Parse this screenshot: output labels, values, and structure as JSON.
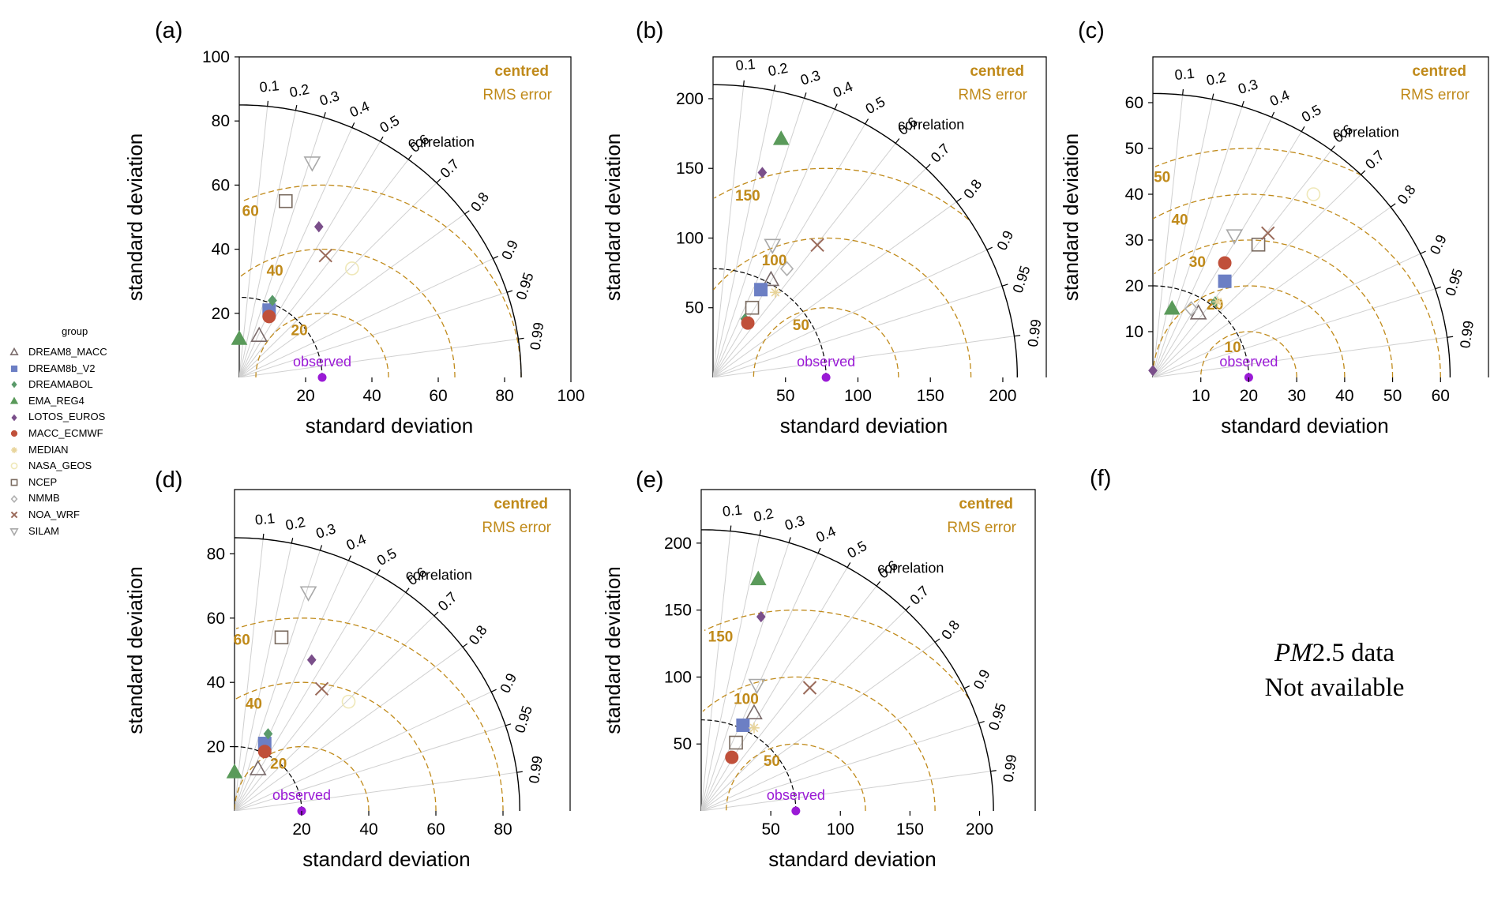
{
  "legend": {
    "title": "group",
    "items": [
      {
        "name": "DREAM8_MACC",
        "marker": "triangle-open",
        "color": "#7a6b6b"
      },
      {
        "name": "DREAM8b_V2",
        "marker": "square",
        "color": "#6c7fc4"
      },
      {
        "name": "DREAMABOL",
        "marker": "diamond",
        "color": "#5a9a6a"
      },
      {
        "name": "EMA_REG4",
        "marker": "triangle",
        "color": "#5a9a5a"
      },
      {
        "name": "LOTOS_EUROS",
        "marker": "diamond",
        "color": "#7a4f8a"
      },
      {
        "name": "MACC_ECMWF",
        "marker": "circle",
        "color": "#c0503a"
      },
      {
        "name": "MEDIAN",
        "marker": "asterisk",
        "color": "#e8d49a"
      },
      {
        "name": "NASA_GEOS",
        "marker": "circle-open",
        "color": "#efe8b8"
      },
      {
        "name": "NCEP",
        "marker": "square-open",
        "color": "#7a6b60"
      },
      {
        "name": "NMMB",
        "marker": "diamond-open",
        "color": "#b0b0b0"
      },
      {
        "name": "NOA_WRF",
        "marker": "x",
        "color": "#9a6a5a"
      },
      {
        "name": "SILAM",
        "marker": "triangle-down-open",
        "color": "#a8a8a8"
      }
    ]
  },
  "common": {
    "xlabel": "standard deviation",
    "ylabel": "standard deviation",
    "correlation_title": "correlation",
    "correlation_ticks": [
      "0.1",
      "0.2",
      "0.3",
      "0.4",
      "0.5",
      "0.6",
      "0.7",
      "0.8",
      "0.9",
      "0.95",
      "0.99"
    ],
    "rms_title_line1": "centred",
    "rms_title_line2": "RMS error",
    "observed_label": "observed",
    "colors": {
      "rms": "#c08a1a",
      "observed": "#9a1ad6",
      "refline": "#d0d0d0",
      "arc": "#000000"
    }
  },
  "chart_data": [
    {
      "panel": "(a)",
      "type": "scatter",
      "chart_kind": "taylor-diagram",
      "xlim": [
        0,
        100
      ],
      "ylim": [
        0,
        100
      ],
      "x_ticks": [
        "20",
        "40",
        "60",
        "80",
        "100"
      ],
      "y_ticks": [
        "20",
        "40",
        "60",
        "80",
        "100"
      ],
      "max_sd": 85,
      "observed_sd": 25,
      "rms_contours": [
        20,
        40,
        60
      ],
      "rms_labels": [
        "20",
        "40",
        "60"
      ],
      "points": [
        {
          "model": "DREAM8_MACC",
          "x": 6,
          "y": 13
        },
        {
          "model": "DREAM8b_V2",
          "x": 9,
          "y": 21
        },
        {
          "model": "DREAMABOL",
          "x": 10,
          "y": 24
        },
        {
          "model": "EMA_REG4",
          "x": 0,
          "y": 12
        },
        {
          "model": "LOTOS_EUROS",
          "x": 24,
          "y": 47
        },
        {
          "model": "MACC_ECMWF",
          "x": 9,
          "y": 19
        },
        {
          "model": "NASA_GEOS",
          "x": 34,
          "y": 34
        },
        {
          "model": "NCEP",
          "x": 14,
          "y": 55
        },
        {
          "model": "NOA_WRF",
          "x": 26,
          "y": 38
        },
        {
          "model": "SILAM",
          "x": 22,
          "y": 67
        }
      ]
    },
    {
      "panel": "(b)",
      "type": "scatter",
      "chart_kind": "taylor-diagram",
      "xlim": [
        0,
        230
      ],
      "ylim": [
        0,
        230
      ],
      "x_ticks": [
        "50",
        "100",
        "150",
        "200"
      ],
      "y_ticks": [
        "50",
        "100",
        "150",
        "200"
      ],
      "max_sd": 210,
      "observed_sd": 78,
      "rms_contours": [
        50,
        100,
        150
      ],
      "rms_labels": [
        "50",
        "100",
        "150"
      ],
      "points": [
        {
          "model": "DREAM8_MACC",
          "x": 40,
          "y": 70
        },
        {
          "model": "DREAM8b_V2",
          "x": 33,
          "y": 63
        },
        {
          "model": "DREAMABOL",
          "x": 22,
          "y": 42
        },
        {
          "model": "EMA_REG4",
          "x": 47,
          "y": 171
        },
        {
          "model": "LOTOS_EUROS",
          "x": 34,
          "y": 147
        },
        {
          "model": "MACC_ECMWF",
          "x": 24,
          "y": 39
        },
        {
          "model": "MEDIAN",
          "x": 43,
          "y": 61
        },
        {
          "model": "NCEP",
          "x": 27,
          "y": 50
        },
        {
          "model": "NMMB",
          "x": 51,
          "y": 78
        },
        {
          "model": "NOA_WRF",
          "x": 72,
          "y": 95
        },
        {
          "model": "SILAM",
          "x": 41,
          "y": 95
        }
      ]
    },
    {
      "panel": "(c)",
      "type": "scatter",
      "chart_kind": "taylor-diagram",
      "xlim": [
        0,
        70
      ],
      "ylim": [
        0,
        70
      ],
      "x_ticks": [
        "10",
        "20",
        "30",
        "40",
        "50",
        "60"
      ],
      "y_ticks": [
        "10",
        "20",
        "30",
        "40",
        "50",
        "60"
      ],
      "max_sd": 62,
      "observed_sd": 20,
      "rms_contours": [
        10,
        20,
        30,
        40,
        50
      ],
      "rms_labels": [
        "10",
        "20",
        "30",
        "40",
        "50"
      ],
      "points": [
        {
          "model": "DREAM8_MACC",
          "x": 9.5,
          "y": 14
        },
        {
          "model": "DREAM8b_V2",
          "x": 15,
          "y": 21
        },
        {
          "model": "DREAMABOL",
          "x": 13,
          "y": 16.5
        },
        {
          "model": "EMA_REG4",
          "x": 4,
          "y": 15
        },
        {
          "model": "LOTOS_EUROS",
          "x": 0,
          "y": 1.5
        },
        {
          "model": "MACC_ECMWF",
          "x": 15,
          "y": 25
        },
        {
          "model": "MEDIAN",
          "x": 13.5,
          "y": 16.5
        },
        {
          "model": "NASA_GEOS",
          "x": 33.5,
          "y": 40
        },
        {
          "model": "NCEP",
          "x": 22,
          "y": 29
        },
        {
          "model": "NMMB",
          "x": 8,
          "y": 15
        },
        {
          "model": "NOA_WRF",
          "x": 24,
          "y": 31.5
        },
        {
          "model": "SILAM",
          "x": 17,
          "y": 31
        }
      ]
    },
    {
      "panel": "(d)",
      "type": "scatter",
      "chart_kind": "taylor-diagram",
      "xlim": [
        0,
        100
      ],
      "ylim": [
        0,
        100
      ],
      "x_ticks": [
        "20",
        "40",
        "60",
        "80"
      ],
      "y_ticks": [
        "20",
        "40",
        "60",
        "80"
      ],
      "max_sd": 85,
      "observed_sd": 20,
      "rms_contours": [
        20,
        40,
        60
      ],
      "rms_labels": [
        "20",
        "40",
        "60"
      ],
      "points": [
        {
          "model": "DREAM8_MACC",
          "x": 7,
          "y": 13
        },
        {
          "model": "DREAM8b_V2",
          "x": 9,
          "y": 21
        },
        {
          "model": "DREAMABOL",
          "x": 10,
          "y": 24
        },
        {
          "model": "EMA_REG4",
          "x": 0,
          "y": 12
        },
        {
          "model": "LOTOS_EUROS",
          "x": 23,
          "y": 47
        },
        {
          "model": "MACC_ECMWF",
          "x": 9,
          "y": 18.5
        },
        {
          "model": "NASA_GEOS",
          "x": 34,
          "y": 34
        },
        {
          "model": "NCEP",
          "x": 14,
          "y": 54
        },
        {
          "model": "NOA_WRF",
          "x": 26,
          "y": 38
        },
        {
          "model": "SILAM",
          "x": 22,
          "y": 68
        }
      ]
    },
    {
      "panel": "(e)",
      "type": "scatter",
      "chart_kind": "taylor-diagram",
      "xlim": [
        0,
        240
      ],
      "ylim": [
        0,
        240
      ],
      "x_ticks": [
        "50",
        "100",
        "150",
        "200"
      ],
      "y_ticks": [
        "50",
        "100",
        "150",
        "200"
      ],
      "max_sd": 210,
      "observed_sd": 68,
      "rms_contours": [
        50,
        100,
        150
      ],
      "rms_labels": [
        "50",
        "100",
        "150"
      ],
      "points": [
        {
          "model": "DREAM8_MACC",
          "x": 38,
          "y": 73
        },
        {
          "model": "DREAM8b_V2",
          "x": 30,
          "y": 64
        },
        {
          "model": "DREAMABOL",
          "x": 21,
          "y": 41
        },
        {
          "model": "EMA_REG4",
          "x": 41,
          "y": 173
        },
        {
          "model": "LOTOS_EUROS",
          "x": 43,
          "y": 145
        },
        {
          "model": "MACC_ECMWF",
          "x": 22,
          "y": 40
        },
        {
          "model": "MEDIAN",
          "x": 38,
          "y": 62
        },
        {
          "model": "NCEP",
          "x": 25,
          "y": 51
        },
        {
          "model": "NOA_WRF",
          "x": 78,
          "y": 92
        },
        {
          "model": "SILAM",
          "x": 40,
          "y": 94
        }
      ]
    }
  ],
  "panel_f": {
    "letter": "(f)",
    "text_pm": "PM",
    "text_num": "2.5",
    "text_data": " data",
    "text_line2": "Not available"
  }
}
